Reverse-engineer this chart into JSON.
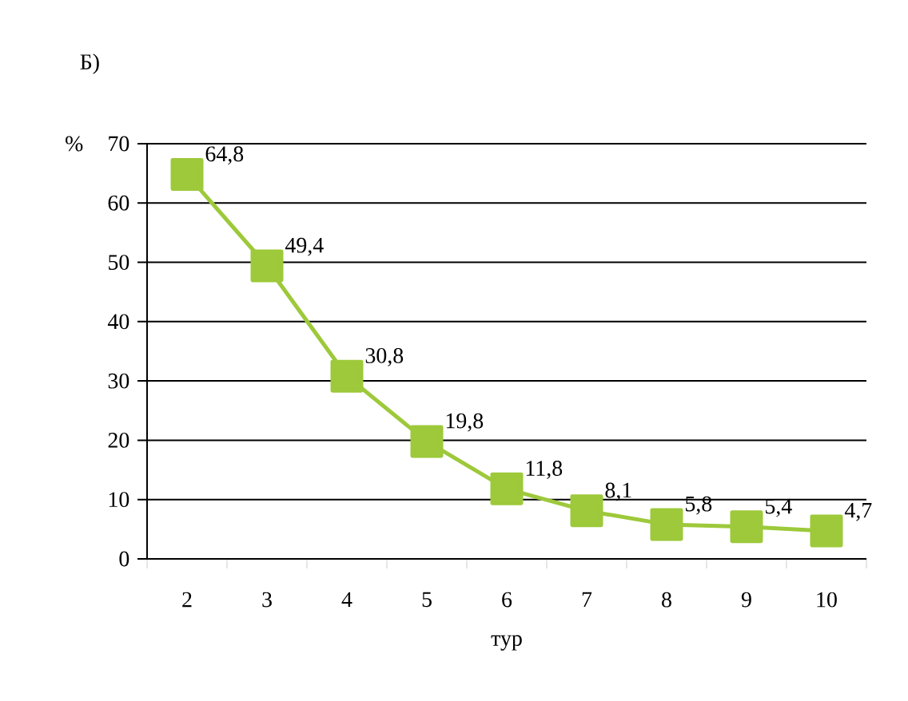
{
  "chart_data": {
    "type": "line",
    "title": "Б)",
    "xlabel": "тур",
    "ylabel": "%",
    "categories": [
      "2",
      "3",
      "4",
      "5",
      "6",
      "7",
      "8",
      "9",
      "10"
    ],
    "series": [
      {
        "color": "#9dc93a",
        "values": [
          64.8,
          49.4,
          30.8,
          19.8,
          11.8,
          8.1,
          5.8,
          5.4,
          4.7
        ],
        "value_labels": [
          "64,8",
          "49,4",
          "30,8",
          "19,8",
          "11,8",
          "8,1",
          "5,8",
          "5,4",
          "4,7"
        ]
      }
    ],
    "ylim": [
      0,
      70
    ],
    "yticks": [
      0,
      10,
      20,
      30,
      40,
      50,
      60,
      70
    ],
    "grid": "y",
    "marker": "square",
    "line_style": "solid"
  }
}
